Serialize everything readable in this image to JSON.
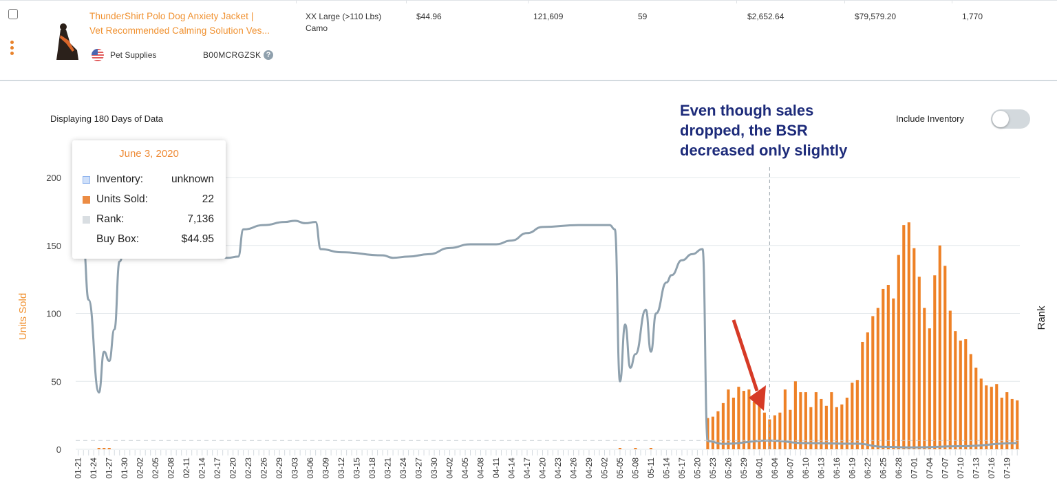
{
  "product_row": {
    "title_line1": "ThunderShirt Polo Dog Anxiety Jacket |",
    "title_line2": "Vet Recommended Calming Solution Ves...",
    "variant_line1": "XX Large (>110 Lbs)",
    "variant_line2": "Camo",
    "price": "$44.96",
    "rank": "121,609",
    "value_59": "59",
    "revenue_1": "$2,652.64",
    "revenue_2": "$79,579.20",
    "count": "1,770",
    "category": "Pet Supplies",
    "asin": "B00MCRGZSK",
    "help_glyph": "?",
    "country_icon": "us-flag-icon"
  },
  "chart_header": {
    "displaying": "Displaying 180 Days of Data",
    "include_inventory_label": "Include Inventory",
    "include_inventory_on": false
  },
  "annotation": {
    "line1": "Even though sales",
    "line2": "dropped, the BSR",
    "line3": "decreased only slightly",
    "arrow_color": "#d63a26",
    "text_color": "#1d2b7a"
  },
  "tooltip": {
    "date": "June 3, 2020",
    "rows": [
      {
        "label": "Inventory:",
        "value": "unknown",
        "swatch": "#cfe0fa"
      },
      {
        "label": "Units Sold:",
        "value": "22",
        "swatch": "#ec8c44"
      },
      {
        "label": "Rank:",
        "value": "7,136",
        "swatch": "#d9dee2"
      },
      {
        "label": "Buy Box:",
        "value": "$44.95",
        "swatch": ""
      }
    ]
  },
  "chart_data": {
    "type": "bar+line",
    "ylabel": "Units Sold",
    "y2label": "Rank",
    "ylim": [
      0,
      200
    ],
    "yticks": [
      "0",
      "50",
      "100",
      "150",
      "200"
    ],
    "rank_ylim": [
      0,
      220000
    ],
    "grid": true,
    "date_range": [
      "2020-01-21",
      "2020-07-21"
    ],
    "x_label_interval_days": 3,
    "hover_date": "2020-06-03",
    "bar_color": "#ee8126",
    "line_color": "#8fa1ae",
    "units_sold_series": {
      "name": "Units Sold",
      "sparse": [
        [
          "2020-01-25",
          1
        ],
        [
          "2020-01-26",
          1
        ],
        [
          "2020-01-27",
          1
        ],
        [
          "2020-05-05",
          1
        ],
        [
          "2020-05-08",
          1
        ],
        [
          "2020-05-11",
          1
        ]
      ],
      "start": "2020-05-22",
      "values": [
        23,
        24,
        28,
        34,
        44,
        38,
        46,
        43,
        44,
        35,
        35,
        27,
        22,
        25,
        27,
        44,
        29,
        50,
        42,
        42,
        31,
        42,
        37,
        32,
        42,
        31,
        33,
        38,
        49,
        51,
        79,
        86,
        98,
        104,
        118,
        121,
        111,
        143,
        165,
        167,
        148,
        127,
        104,
        89,
        128,
        150,
        135,
        102,
        87,
        80,
        81,
        70,
        60,
        52,
        47,
        46,
        48,
        38,
        42,
        37,
        36
      ]
    },
    "rank_series": {
      "name": "Rank",
      "points": [
        [
          "2020-01-22",
          165000
        ],
        [
          "2020-01-23",
          121000
        ],
        [
          "2020-01-25",
          46000
        ],
        [
          "2020-01-26",
          79000
        ],
        [
          "2020-01-27",
          71500
        ],
        [
          "2020-01-28",
          97000
        ],
        [
          "2020-01-29",
          152000
        ],
        [
          "2020-01-30",
          163000
        ],
        [
          "2020-02-19",
          155000
        ],
        [
          "2020-02-21",
          156000
        ],
        [
          "2020-02-22",
          178000
        ],
        [
          "2020-02-26",
          181500
        ],
        [
          "2020-03-01",
          184000
        ],
        [
          "2020-03-03",
          185000
        ],
        [
          "2020-03-05",
          183000
        ],
        [
          "2020-03-07",
          184000
        ],
        [
          "2020-03-08",
          162000
        ],
        [
          "2020-03-12",
          159500
        ],
        [
          "2020-03-20",
          157000
        ],
        [
          "2020-03-22",
          155000
        ],
        [
          "2020-03-25",
          156000
        ],
        [
          "2020-03-29",
          158000
        ],
        [
          "2020-04-02",
          163000
        ],
        [
          "2020-04-06",
          166000
        ],
        [
          "2020-04-11",
          166000
        ],
        [
          "2020-04-14",
          169000
        ],
        [
          "2020-04-17",
          175000
        ],
        [
          "2020-04-20",
          180000
        ],
        [
          "2020-04-27",
          181500
        ],
        [
          "2020-05-03",
          181500
        ],
        [
          "2020-05-04",
          178000
        ],
        [
          "2020-05-05",
          55000
        ],
        [
          "2020-05-06",
          101000
        ],
        [
          "2020-05-07",
          66000
        ],
        [
          "2020-05-08",
          77000
        ],
        [
          "2020-05-10",
          113000
        ],
        [
          "2020-05-11",
          79000
        ],
        [
          "2020-05-12",
          110000
        ],
        [
          "2020-05-14",
          135000
        ],
        [
          "2020-05-15",
          141000
        ],
        [
          "2020-05-17",
          153000
        ],
        [
          "2020-05-19",
          158000
        ],
        [
          "2020-05-21",
          162000
        ],
        [
          "2020-05-22",
          6600
        ],
        [
          "2020-05-25",
          4400
        ],
        [
          "2020-06-03",
          7136
        ],
        [
          "2020-06-10",
          5000
        ],
        [
          "2020-06-20",
          4500
        ],
        [
          "2020-06-25",
          2000
        ],
        [
          "2020-07-01",
          1500
        ],
        [
          "2020-07-10",
          2500
        ],
        [
          "2020-07-21",
          5000
        ]
      ]
    }
  }
}
